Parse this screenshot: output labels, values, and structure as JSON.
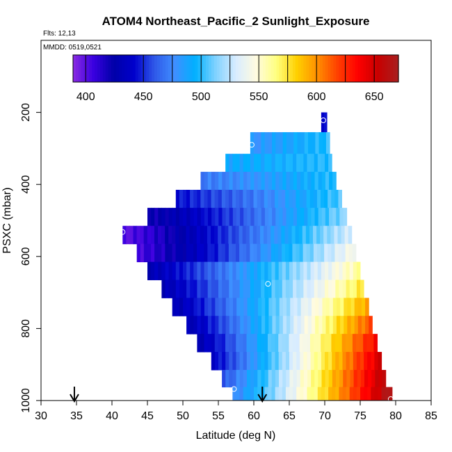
{
  "chart_data": {
    "type": "heatmap",
    "title": "ATOM4 Northeast_Pacific_2 Sunlight_Exposure",
    "flights_label": "Flts: 12,13",
    "dates_label": "MMDD: 0519,0521",
    "xlabel": "Latitude (deg N)",
    "ylabel": "PSXC (mbar)",
    "xlim": [
      30,
      85
    ],
    "ylim": [
      1000,
      0
    ],
    "x_ticks": [
      "30",
      "35",
      "40",
      "45",
      "50",
      "55",
      "60",
      "65",
      "70",
      "75",
      "80",
      "85"
    ],
    "y_ticks": [
      "200",
      "400",
      "600",
      "800",
      "1000"
    ],
    "colorbar": {
      "range": [
        389,
        671
      ],
      "ticks": [
        "400",
        "450",
        "500",
        "550",
        "600",
        "650"
      ],
      "colors": [
        "#8a2be2",
        "#3a00e0",
        "#0000a8",
        "#0000cc",
        "#2f58e8",
        "#3f8fff",
        "#00b0ff",
        "#7fd2ff",
        "#d8ecff",
        "#fffbe0",
        "#ffff80",
        "#ffd000",
        "#ff9000",
        "#ff4000",
        "#ff0000",
        "#c80000",
        "#a82020"
      ]
    },
    "rows": [
      {
        "p": 220,
        "lat_min": 69.5,
        "lat_max": 70.3,
        "v_start": 440,
        "v_end": 440
      },
      {
        "p": 290,
        "lat_min": 59.5,
        "lat_max": 70.7,
        "v_start": 480,
        "v_end": 500
      },
      {
        "p": 340,
        "lat_min": 56.0,
        "lat_max": 71.0,
        "v_start": 490,
        "v_end": 500
      },
      {
        "p": 390,
        "lat_min": 52.5,
        "lat_max": 71.6,
        "v_start": 470,
        "v_end": 500
      },
      {
        "p": 440,
        "lat_min": 49.0,
        "lat_max": 72.4,
        "v_start": 445,
        "v_end": 505
      },
      {
        "p": 490,
        "lat_min": 45.0,
        "lat_max": 73.1,
        "v_start": 420,
        "v_end": 515
      },
      {
        "p": 540,
        "lat_min": 41.5,
        "lat_max": 73.8,
        "v_start": 400,
        "v_end": 530
      },
      {
        "p": 590,
        "lat_min": 43.5,
        "lat_max": 74.4,
        "v_start": 405,
        "v_end": 545
      },
      {
        "p": 640,
        "lat_min": 45.0,
        "lat_max": 75.0,
        "v_start": 430,
        "v_end": 560
      },
      {
        "p": 690,
        "lat_min": 47.0,
        "lat_max": 75.5,
        "v_start": 430,
        "v_end": 575
      },
      {
        "p": 740,
        "lat_min": 48.5,
        "lat_max": 76.2,
        "v_start": 430,
        "v_end": 595
      },
      {
        "p": 790,
        "lat_min": 50.5,
        "lat_max": 76.7,
        "v_start": 430,
        "v_end": 615
      },
      {
        "p": 840,
        "lat_min": 52.0,
        "lat_max": 77.4,
        "v_start": 430,
        "v_end": 635
      },
      {
        "p": 890,
        "lat_min": 54.0,
        "lat_max": 78.0,
        "v_start": 440,
        "v_end": 650
      },
      {
        "p": 940,
        "lat_min": 55.5,
        "lat_max": 78.6,
        "v_start": 460,
        "v_end": 660
      },
      {
        "p": 985,
        "lat_min": 57.0,
        "lat_max": 79.5,
        "v_start": 475,
        "v_end": 670
      }
    ],
    "circles": [
      {
        "lat": 69.8,
        "p": 222
      },
      {
        "lat": 59.7,
        "p": 290
      },
      {
        "lat": 41.5,
        "p": 532
      },
      {
        "lat": 62.0,
        "p": 676
      },
      {
        "lat": 57.2,
        "p": 968
      },
      {
        "lat": 79.3,
        "p": 996
      }
    ],
    "arrows": [
      {
        "lat": 34.7
      },
      {
        "lat": 61.2
      }
    ]
  }
}
